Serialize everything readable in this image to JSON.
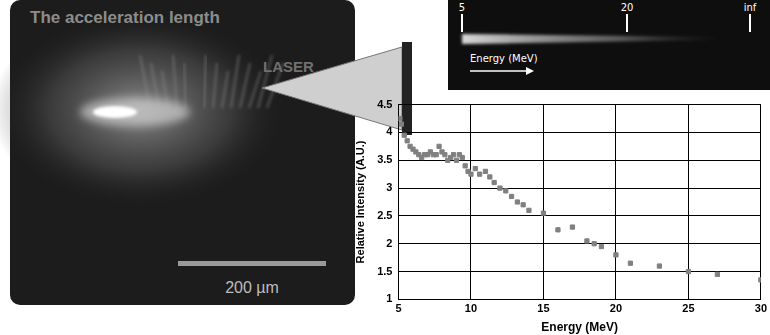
{
  "image_panel": {
    "title": "The acceleration length",
    "label": "LASER",
    "scale_bar": "200 µm"
  },
  "spectrum_strip": {
    "labels": [
      "5",
      "20",
      "inf"
    ],
    "axis_label": "Energy (MeV)"
  },
  "chart_data": {
    "type": "scatter",
    "x_label": "Energy (MeV)",
    "y_label": "Relative Intensity (A.U.)",
    "x": [
      5.1,
      5.2,
      5.4,
      5.6,
      5.8,
      6.0,
      6.2,
      6.4,
      6.6,
      6.8,
      7.0,
      7.2,
      7.4,
      7.6,
      7.8,
      8.0,
      8.2,
      8.4,
      8.6,
      8.8,
      9.0,
      9.2,
      9.4,
      9.6,
      9.8,
      10.0,
      10.3,
      10.6,
      11.0,
      11.3,
      11.6,
      12.0,
      12.4,
      12.8,
      13.2,
      13.6,
      14.0,
      15.0,
      16.0,
      17.0,
      18.0,
      18.5,
      19.0,
      20.0,
      21.0,
      23.0,
      25.0,
      27.0,
      30.0
    ],
    "values": [
      4.25,
      4.15,
      3.95,
      3.85,
      3.75,
      3.7,
      3.65,
      3.6,
      3.55,
      3.6,
      3.6,
      3.65,
      3.6,
      3.6,
      3.75,
      3.65,
      3.6,
      3.5,
      3.55,
      3.6,
      3.5,
      3.6,
      3.55,
      3.4,
      3.3,
      3.25,
      3.35,
      3.25,
      3.3,
      3.2,
      3.1,
      3.0,
      2.95,
      2.85,
      2.75,
      2.7,
      2.6,
      2.55,
      2.25,
      2.3,
      2.05,
      2.0,
      1.95,
      1.8,
      1.65,
      1.6,
      1.5,
      1.45,
      1.35
    ],
    "color": "#808080",
    "marker": "square",
    "xlim": [
      5,
      30
    ],
    "xticks": [
      5,
      10,
      15,
      20,
      25,
      30
    ],
    "ylim": [
      1,
      4.5
    ],
    "yticks": [
      1,
      1.5,
      2,
      2.5,
      3,
      3.5,
      4,
      4.5
    ],
    "grid": true
  }
}
